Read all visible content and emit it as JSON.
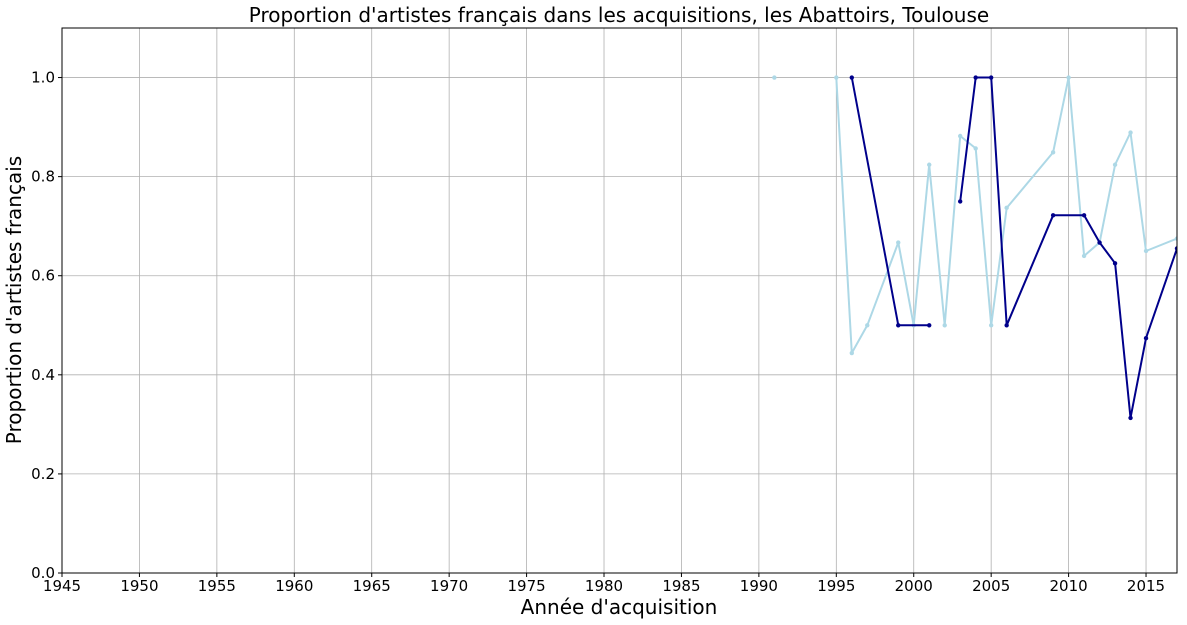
{
  "chart_data": {
    "type": "line",
    "title": "Proportion d'artistes français dans les acquisitions, les Abattoirs, Toulouse",
    "xlabel": "Année d'acquisition",
    "ylabel": "Proportion d'artistes français",
    "xlim": [
      1945,
      2017
    ],
    "ylim": [
      0,
      1.1
    ],
    "xticks": [
      1945,
      1950,
      1955,
      1960,
      1965,
      1970,
      1975,
      1980,
      1985,
      1990,
      1995,
      2000,
      2005,
      2010,
      2015
    ],
    "yticks": [
      0.0,
      0.2,
      0.4,
      0.6,
      0.8,
      1.0
    ],
    "grid": true,
    "series": [
      {
        "color": "#add8e6",
        "segments": [
          [
            [
              1991,
              1.0
            ]
          ],
          [
            [
              1995,
              1.0
            ],
            [
              1996,
              0.444
            ],
            [
              1997,
              0.5
            ],
            [
              1999,
              0.667
            ],
            [
              2000,
              0.5
            ],
            [
              2001,
              0.824
            ],
            [
              2002,
              0.5
            ],
            [
              2003,
              0.882
            ],
            [
              2004,
              0.857
            ],
            [
              2005,
              0.5
            ],
            [
              2006,
              0.737
            ],
            [
              2009,
              0.849
            ],
            [
              2010,
              1.0
            ],
            [
              2011,
              0.64
            ],
            [
              2012,
              0.667
            ],
            [
              2013,
              0.824
            ],
            [
              2014,
              0.889
            ],
            [
              2015,
              0.65
            ],
            [
              2017,
              0.675
            ]
          ]
        ]
      },
      {
        "color": "#00008b",
        "segments": [
          [
            [
              1996,
              1.0
            ],
            [
              1999,
              0.5
            ],
            [
              2001,
              0.5
            ]
          ],
          [
            [
              2003,
              0.75
            ],
            [
              2004,
              1.0
            ],
            [
              2005,
              1.0
            ],
            [
              2006,
              0.5
            ],
            [
              2009,
              0.722
            ],
            [
              2011,
              0.722
            ],
            [
              2012,
              0.667
            ],
            [
              2013,
              0.625
            ],
            [
              2014,
              0.313
            ],
            [
              2015,
              0.474
            ],
            [
              2017,
              0.655
            ]
          ]
        ]
      }
    ]
  }
}
